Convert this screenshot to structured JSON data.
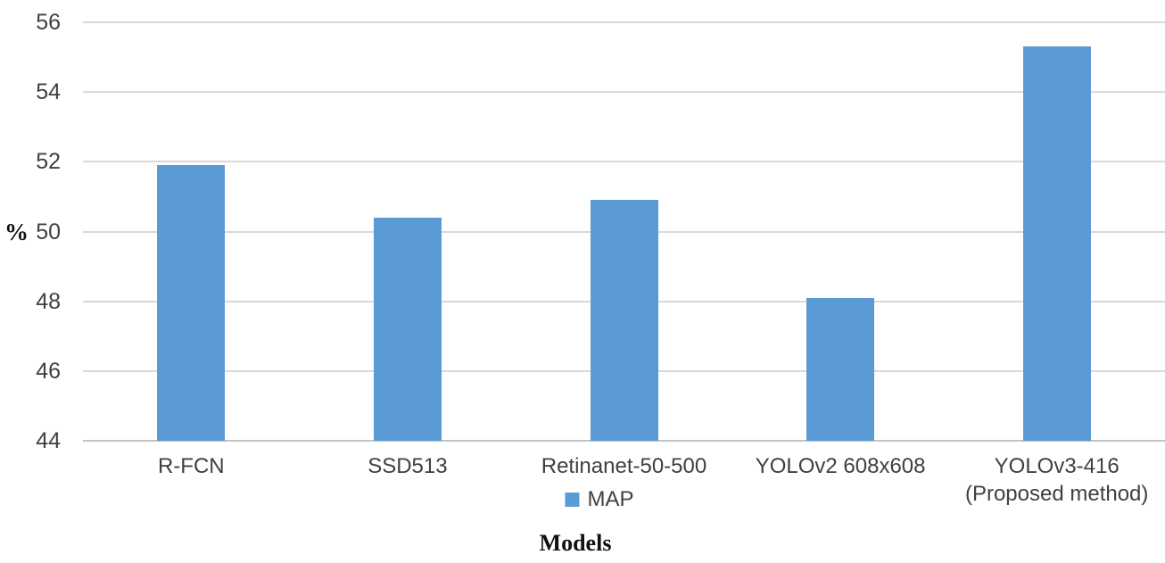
{
  "chart_data": {
    "type": "bar",
    "title": "",
    "categories": [
      "R-FCN",
      "SSD513",
      "Retinanet-50-500",
      "YOLOv2 608x608",
      "YOLOv3-416\n(Proposed method)"
    ],
    "values": [
      51.9,
      50.4,
      50.9,
      48.1,
      55.3
    ],
    "series_name": "MAP",
    "xlabel": "Models",
    "ylabel": "%",
    "ylim": [
      44,
      56
    ],
    "yticks": [
      44,
      46,
      48,
      50,
      52,
      54,
      56
    ],
    "grid": true,
    "legend_position": "bottom-center",
    "bar_color": "#5B9BD5",
    "gridline_color": "#D9D9D9",
    "axis_line_color": "#C3C3C3",
    "tick_text_color": "#404040",
    "axis_title_text_color": "#111111"
  }
}
